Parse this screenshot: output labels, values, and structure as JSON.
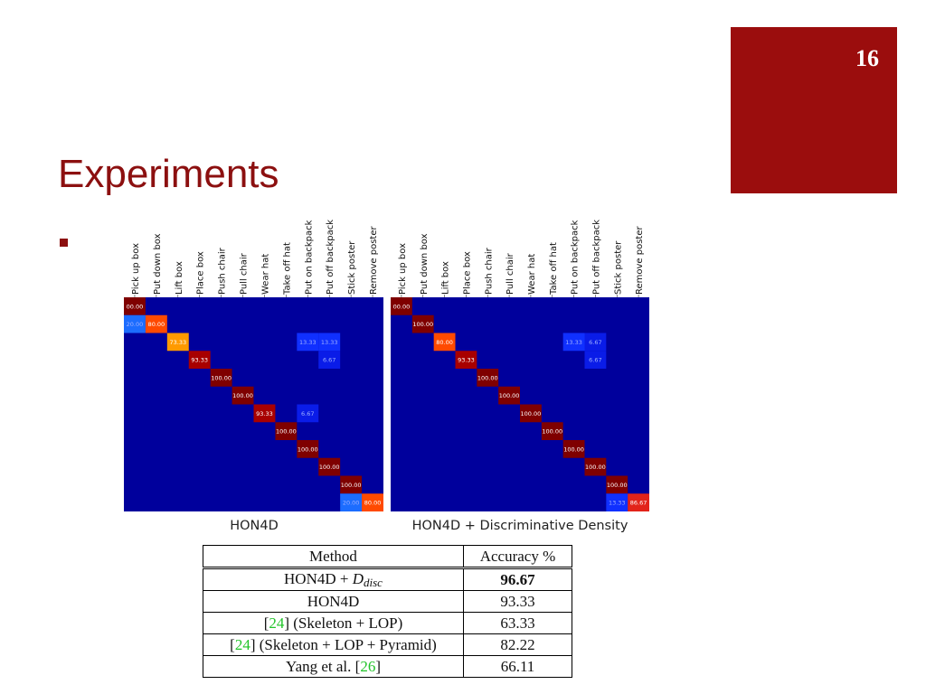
{
  "page_number": "16",
  "title": "Experiments",
  "colors": {
    "accent": "#9b0d0d",
    "title": "#8c1010",
    "citation": "#22c42a"
  },
  "chart_data": [
    {
      "type": "heatmap",
      "title": "HON4D",
      "categories": [
        "Pick up box",
        "Put down box",
        "Lift box",
        "Place box",
        "Push chair",
        "Pull chair",
        "Wear hat",
        "Take off hat",
        "Put on backpack",
        "Put off backpack",
        "Stick poster",
        "Remove poster"
      ],
      "cells": [
        [
          0,
          0,
          "00.00"
        ],
        [
          1,
          0,
          "20.00"
        ],
        [
          1,
          1,
          "80.00"
        ],
        [
          2,
          2,
          "73.33"
        ],
        [
          2,
          8,
          "13.33"
        ],
        [
          2,
          9,
          "13.33"
        ],
        [
          3,
          3,
          "93.33"
        ],
        [
          3,
          9,
          "6.67"
        ],
        [
          4,
          4,
          "100.00"
        ],
        [
          5,
          5,
          "100.00"
        ],
        [
          6,
          6,
          "93.33"
        ],
        [
          6,
          8,
          "6.67"
        ],
        [
          7,
          7,
          "100.00"
        ],
        [
          8,
          8,
          "100.00"
        ],
        [
          9,
          9,
          "100.00"
        ],
        [
          10,
          10,
          "100.00"
        ],
        [
          11,
          10,
          "20.00"
        ],
        [
          11,
          11,
          "80.00"
        ]
      ]
    },
    {
      "type": "heatmap",
      "title": "HON4D + Discriminative Density",
      "categories": [
        "Pick up box",
        "Put down box",
        "Lift box",
        "Place box",
        "Push chair",
        "Pull chair",
        "Wear hat",
        "Take off hat",
        "Put on backpack",
        "Put off backpack",
        "Stick poster",
        "Remove poster"
      ],
      "cells": [
        [
          0,
          0,
          "00.00"
        ],
        [
          1,
          1,
          "100.00"
        ],
        [
          2,
          2,
          "80.00"
        ],
        [
          2,
          8,
          "13.33"
        ],
        [
          2,
          9,
          "6.67"
        ],
        [
          3,
          3,
          "93.33"
        ],
        [
          3,
          9,
          "6.67"
        ],
        [
          4,
          4,
          "100.00"
        ],
        [
          5,
          5,
          "100.00"
        ],
        [
          6,
          6,
          "100.00"
        ],
        [
          7,
          7,
          "100.00"
        ],
        [
          8,
          8,
          "100.00"
        ],
        [
          9,
          9,
          "100.00"
        ],
        [
          10,
          10,
          "100.00"
        ],
        [
          11,
          10,
          "13.33"
        ],
        [
          11,
          11,
          "86.67"
        ]
      ]
    }
  ],
  "table": {
    "headers": [
      "Method",
      "Accuracy %"
    ],
    "rows": [
      {
        "pre": "",
        "cite": "",
        "method": "HON4D + ",
        "sub_base": "D",
        "sub": "disc",
        "accuracy": "96.67",
        "best": true
      },
      {
        "pre": "",
        "cite": "",
        "method": "HON4D",
        "sub_base": "",
        "sub": "",
        "accuracy": "93.33",
        "best": false
      },
      {
        "pre": "[",
        "cite": "24",
        "method": "] (Skeleton + LOP)",
        "sub_base": "",
        "sub": "",
        "accuracy": "63.33",
        "best": false
      },
      {
        "pre": "[",
        "cite": "24",
        "method": "] (Skeleton + LOP + Pyramid)",
        "sub_base": "",
        "sub": "",
        "accuracy": "82.22",
        "best": false
      },
      {
        "pre": "Yang et al. [",
        "cite": "26",
        "method": "]",
        "sub_base": "",
        "sub": "",
        "accuracy": "66.11",
        "best": false
      }
    ]
  }
}
